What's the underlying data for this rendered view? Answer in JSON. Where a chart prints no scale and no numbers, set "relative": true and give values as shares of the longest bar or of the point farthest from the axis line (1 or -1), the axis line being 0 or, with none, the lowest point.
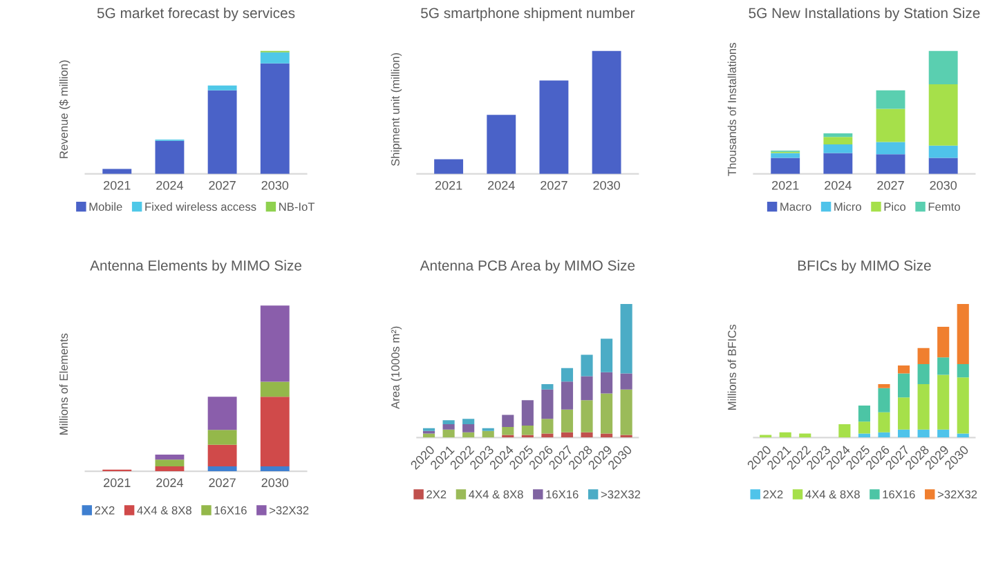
{
  "chart_data": [
    {
      "type": "bar",
      "title": "5G market forecast by services",
      "ylabel": "Revenue ($ million)",
      "categories": [
        "2021",
        "2024",
        "2027",
        "2030"
      ],
      "stacked": true,
      "relative": true,
      "legend": "bottom",
      "series": [
        {
          "name": "Mobile",
          "color": "#4a62c8",
          "values": [
            0.04,
            0.27,
            0.68,
            0.9
          ]
        },
        {
          "name": "Fixed wireless access",
          "color": "#4fc8e8",
          "values": [
            0,
            0.01,
            0.04,
            0.09
          ]
        },
        {
          "name": "NB-IoT",
          "color": "#8fd14f",
          "values": [
            0,
            0,
            0,
            0.01
          ]
        }
      ]
    },
    {
      "type": "bar",
      "title": "5G smartphone shipment number",
      "ylabel": "Shipment unit (million)",
      "categories": [
        "2021",
        "2024",
        "2027",
        "2030"
      ],
      "relative": true,
      "series": [
        {
          "color": "#4a62c8",
          "values": [
            0.12,
            0.48,
            0.76,
            1
          ]
        }
      ]
    },
    {
      "type": "bar",
      "title": "5G New Installations by Station Size",
      "ylabel": "Thousands of Installations",
      "categories": [
        "2021",
        "2024",
        "2027",
        "2030"
      ],
      "stacked": true,
      "relative": true,
      "legend": "bottom",
      "series": [
        {
          "name": "Macro",
          "color": "#4a62c8",
          "values": [
            0.13,
            0.17,
            0.16,
            0.13
          ]
        },
        {
          "name": "Micro",
          "color": "#4fc3ea",
          "values": [
            0.04,
            0.07,
            0.1,
            0.1
          ]
        },
        {
          "name": "Pico",
          "color": "#a6e04a",
          "values": [
            0.01,
            0.06,
            0.27,
            0.5
          ]
        },
        {
          "name": "Femto",
          "color": "#5acfb0",
          "values": [
            0.01,
            0.03,
            0.15,
            0.27
          ]
        }
      ]
    },
    {
      "type": "bar",
      "title": "Antenna Elements by MIMO Size",
      "ylabel": "Millions of Elements",
      "categories": [
        "2021",
        "2024",
        "2027",
        "2030"
      ],
      "stacked": true,
      "relative": true,
      "legend": "bottom",
      "series": [
        {
          "name": "2X2",
          "color": "#3f7fd0",
          "values": [
            0,
            0,
            0.03,
            0.03
          ]
        },
        {
          "name": "4X4 & 8X8",
          "color": "#d04a4a",
          "values": [
            0.01,
            0.03,
            0.13,
            0.42
          ]
        },
        {
          "name": "16X16",
          "color": "#94b84a",
          "values": [
            0,
            0.04,
            0.09,
            0.09
          ]
        },
        {
          "name": ">32X32",
          "color": "#8a5eab",
          "values": [
            0,
            0.03,
            0.2,
            0.46
          ]
        }
      ]
    },
    {
      "type": "bar",
      "title": "Antenna PCB Area by MIMO Size",
      "ylabel": "Area (1000s m²)",
      "categories": [
        "2020",
        "2021",
        "2022",
        "2023",
        "2024",
        "2025",
        "2026",
        "2027",
        "2028",
        "2029",
        "2030"
      ],
      "stacked": true,
      "relative": true,
      "legend": "bottom",
      "series": [
        {
          "name": "2X2",
          "color": "#c0504d",
          "values": [
            0,
            0,
            0,
            0,
            0.02,
            0.02,
            0.03,
            0.04,
            0.04,
            0.03,
            0.02
          ]
        },
        {
          "name": "4X4 & 8X8",
          "color": "#9bbb59",
          "values": [
            0.03,
            0.06,
            0.04,
            0.05,
            0.06,
            0.07,
            0.11,
            0.17,
            0.24,
            0.3,
            0.34
          ]
        },
        {
          "name": "16X16",
          "color": "#8064a2",
          "values": [
            0.02,
            0.04,
            0.06,
            0,
            0.09,
            0.19,
            0.22,
            0.21,
            0.18,
            0.16,
            0.12
          ]
        },
        {
          "name": ">32X32",
          "color": "#4bacc6",
          "values": [
            0.02,
            0.03,
            0.04,
            0.02,
            0,
            0,
            0.04,
            0.1,
            0.16,
            0.25,
            0.52
          ]
        }
      ]
    },
    {
      "type": "bar",
      "title": "BFICs by MIMO Size",
      "ylabel": "Millions of BFICs",
      "categories": [
        "2020",
        "2021",
        "2022",
        "2023",
        "2024",
        "2025",
        "2026",
        "2027",
        "2028",
        "2029",
        "2030"
      ],
      "stacked": true,
      "relative": true,
      "legend": "bottom",
      "series": [
        {
          "name": "2X2",
          "color": "#4fc3ea",
          "values": [
            0,
            0,
            0,
            0,
            0,
            0.03,
            0.04,
            0.06,
            0.06,
            0.06,
            0.03
          ]
        },
        {
          "name": "4X4 & 8X8",
          "color": "#a6e04a",
          "values": [
            0.02,
            0.04,
            0.03,
            0,
            0.1,
            0.09,
            0.15,
            0.24,
            0.34,
            0.41,
            0.42
          ]
        },
        {
          "name": "16X16",
          "color": "#4cc5a5",
          "values": [
            0,
            0,
            0,
            0,
            0,
            0.12,
            0.18,
            0.18,
            0.15,
            0.13,
            0.1
          ]
        },
        {
          "name": ">32X32",
          "color": "#f07f2f",
          "values": [
            0,
            0,
            0,
            0,
            0,
            0,
            0.03,
            0.06,
            0.12,
            0.23,
            0.45
          ]
        }
      ]
    }
  ]
}
